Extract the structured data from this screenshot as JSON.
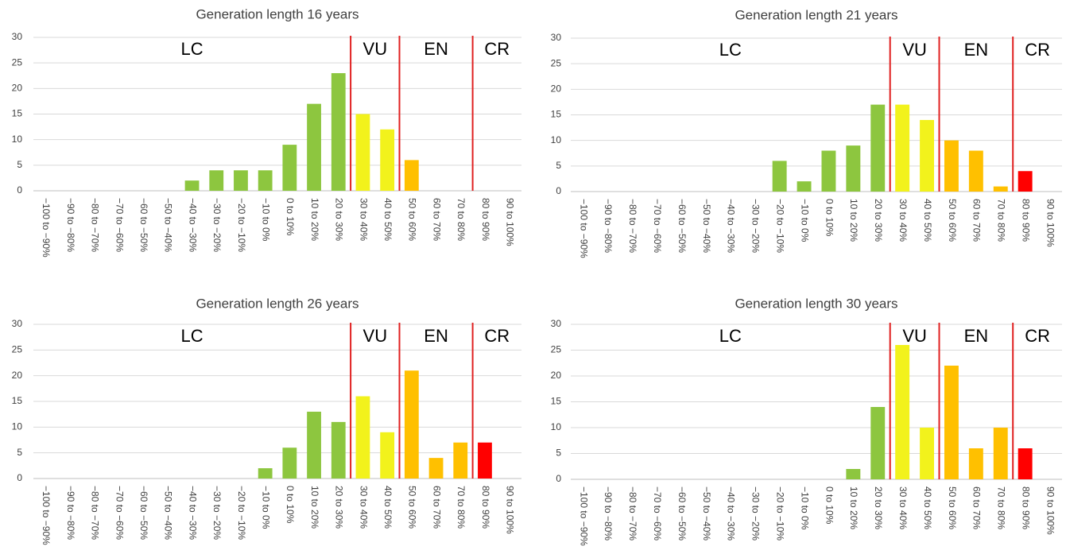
{
  "chart_data": [
    {
      "type": "bar",
      "title": "Generation length 16 years",
      "categories": [
        "−100 to −90%",
        "−90 to −80%",
        "−80 to −70%",
        "−70 to −60%",
        "−60 to −50%",
        "−50 to −40%",
        "−40 to −30%",
        "−30 to −20%",
        "−20 to −10%",
        "−10 to 0%",
        "0 to 10%",
        "10 to 20%",
        "20 to 30%",
        "30 to 40%",
        "40 to 50%",
        "50 to 60%",
        "60 to 70%",
        "70 to 80%",
        "80 to 90%",
        "90 to 100%"
      ],
      "values": [
        0,
        0,
        0,
        0,
        0,
        0,
        2,
        4,
        4,
        4,
        9,
        17,
        23,
        15,
        12,
        6,
        0,
        0,
        0,
        0
      ],
      "colors": [
        "#8dc63f",
        "#8dc63f",
        "#8dc63f",
        "#8dc63f",
        "#8dc63f",
        "#8dc63f",
        "#8dc63f",
        "#8dc63f",
        "#8dc63f",
        "#8dc63f",
        "#8dc63f",
        "#8dc63f",
        "#8dc63f",
        "#f2f21c",
        "#f2f21c",
        "#ffc000",
        "#ffc000",
        "#ffc000",
        "#ff0000",
        "#ff0000"
      ],
      "ylim": [
        0,
        30
      ],
      "yticks": [
        0,
        5,
        10,
        15,
        20,
        25,
        30
      ],
      "grid": true,
      "zones": [
        {
          "label": "LC",
          "start": "−100 to −90%"
        },
        {
          "label": "VU",
          "start": "30 to 40%"
        },
        {
          "label": "EN",
          "start": "50 to 60%"
        },
        {
          "label": "CR",
          "start": "80 to 90%"
        }
      ]
    },
    {
      "type": "bar",
      "title": "Generation length 21 years",
      "categories": [
        "−100 to −90%",
        "−90 to −80%",
        "−80 to −70%",
        "−70 to −60%",
        "−60 to −50%",
        "−50 to −40%",
        "−40 to −30%",
        "−30 to −20%",
        "−20 to −10%",
        "−10 to 0%",
        "0 to 10%",
        "10 to 20%",
        "20 to 30%",
        "30 to 40%",
        "40 to 50%",
        "50 to 60%",
        "60 to 70%",
        "70 to 80%",
        "80 to 90%",
        "90 to 100%"
      ],
      "values": [
        0,
        0,
        0,
        0,
        0,
        0,
        0,
        0,
        6,
        2,
        8,
        9,
        17,
        17,
        14,
        10,
        8,
        1,
        4,
        0
      ],
      "colors": [
        "#8dc63f",
        "#8dc63f",
        "#8dc63f",
        "#8dc63f",
        "#8dc63f",
        "#8dc63f",
        "#8dc63f",
        "#8dc63f",
        "#8dc63f",
        "#8dc63f",
        "#8dc63f",
        "#8dc63f",
        "#8dc63f",
        "#f2f21c",
        "#f2f21c",
        "#ffc000",
        "#ffc000",
        "#ffc000",
        "#ff0000",
        "#ff0000"
      ],
      "ylim": [
        0,
        30
      ],
      "yticks": [
        0,
        5,
        10,
        15,
        20,
        25,
        30
      ],
      "grid": true,
      "zones": [
        {
          "label": "LC",
          "start": "−100 to −90%"
        },
        {
          "label": "VU",
          "start": "30 to 40%"
        },
        {
          "label": "EN",
          "start": "50 to 60%"
        },
        {
          "label": "CR",
          "start": "80 to 90%"
        }
      ]
    },
    {
      "type": "bar",
      "title": "Generation length 26 years",
      "categories": [
        "−100 to −90%",
        "−90 to −80%",
        "−80 to −70%",
        "−70 to −60%",
        "−60 to −50%",
        "−50 to −40%",
        "−40 to −30%",
        "−30 to −20%",
        "−20 to −10%",
        "−10 to 0%",
        "0 to 10%",
        "10 to 20%",
        "20 to 30%",
        "30 to 40%",
        "40 to 50%",
        "50 to 60%",
        "60 to 70%",
        "70 to 80%",
        "80 to 90%",
        "90 to 100%"
      ],
      "values": [
        0,
        0,
        0,
        0,
        0,
        0,
        0,
        0,
        0,
        2,
        6,
        13,
        11,
        16,
        9,
        21,
        4,
        7,
        7,
        0
      ],
      "colors": [
        "#8dc63f",
        "#8dc63f",
        "#8dc63f",
        "#8dc63f",
        "#8dc63f",
        "#8dc63f",
        "#8dc63f",
        "#8dc63f",
        "#8dc63f",
        "#8dc63f",
        "#8dc63f",
        "#8dc63f",
        "#8dc63f",
        "#f2f21c",
        "#f2f21c",
        "#ffc000",
        "#ffc000",
        "#ffc000",
        "#ff0000",
        "#ff0000"
      ],
      "ylim": [
        0,
        30
      ],
      "yticks": [
        0,
        5,
        10,
        15,
        20,
        25,
        30
      ],
      "grid": true,
      "zones": [
        {
          "label": "LC",
          "start": "−100 to −90%"
        },
        {
          "label": "VU",
          "start": "30 to 40%"
        },
        {
          "label": "EN",
          "start": "50 to 60%"
        },
        {
          "label": "CR",
          "start": "80 to 90%"
        }
      ]
    },
    {
      "type": "bar",
      "title": "Generation length 30 years",
      "categories": [
        "−100 to −90%",
        "−90 to −80%",
        "−80 to −70%",
        "−70 to −60%",
        "−60 to −50%",
        "−50 to −40%",
        "−40 to −30%",
        "−30 to −20%",
        "−20 to −10%",
        "−10 to 0%",
        "0 to 10%",
        "10 to 20%",
        "20 to 30%",
        "30 to 40%",
        "40 to 50%",
        "50 to 60%",
        "60 to 70%",
        "70 to 80%",
        "80 to 90%",
        "90 to 100%"
      ],
      "values": [
        0,
        0,
        0,
        0,
        0,
        0,
        0,
        0,
        0,
        0,
        0,
        2,
        14,
        26,
        10,
        22,
        6,
        10,
        6,
        0
      ],
      "colors": [
        "#8dc63f",
        "#8dc63f",
        "#8dc63f",
        "#8dc63f",
        "#8dc63f",
        "#8dc63f",
        "#8dc63f",
        "#8dc63f",
        "#8dc63f",
        "#8dc63f",
        "#8dc63f",
        "#8dc63f",
        "#8dc63f",
        "#f2f21c",
        "#f2f21c",
        "#ffc000",
        "#ffc000",
        "#ffc000",
        "#ff0000",
        "#ff0000"
      ],
      "ylim": [
        0,
        30
      ],
      "yticks": [
        0,
        5,
        10,
        15,
        20,
        25,
        30
      ],
      "grid": true,
      "zones": [
        {
          "label": "LC",
          "start": "−100 to −90%"
        },
        {
          "label": "VU",
          "start": "30 to 40%"
        },
        {
          "label": "EN",
          "start": "50 to 60%"
        },
        {
          "label": "CR",
          "start": "80 to 90%"
        }
      ]
    }
  ]
}
